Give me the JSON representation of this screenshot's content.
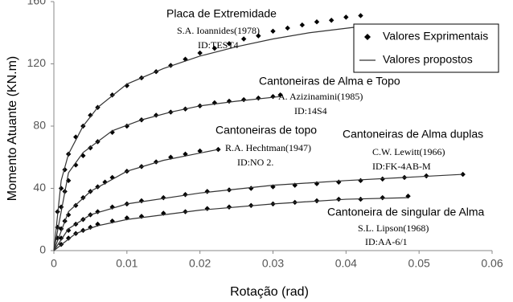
{
  "chart_data": {
    "type": "scatter",
    "x_label": "Rotação (rad)",
    "y_label": "Momento Atuante (KN.m)",
    "xlim": [
      0,
      0.06
    ],
    "xticks": [
      0,
      0.01,
      0.02,
      0.03,
      0.04,
      0.05,
      0.06
    ],
    "ylim": [
      0,
      160
    ],
    "yticks": [
      0,
      40,
      80,
      120,
      160
    ],
    "legend": "upper right",
    "series": [
      {
        "name": "Valores Exprimentais",
        "marker": "diamond",
        "color": "#000000",
        "curves": [
          {
            "x": [
              0.0005,
              0.001,
              0.0015,
              0.002,
              0.003,
              0.004,
              0.005,
              0.006,
              0.008,
              0.01,
              0.012,
              0.014,
              0.016,
              0.018,
              0.02,
              0.022,
              0.024,
              0.026,
              0.028,
              0.03,
              0.032,
              0.034,
              0.036,
              0.038,
              0.04,
              0.042
            ],
            "y": [
              25,
              40,
              52,
              62,
              73,
              80,
              87,
              92,
              100,
              106,
              111,
              115,
              119,
              123,
              127,
              130,
              133,
              136,
              138,
              141,
              143,
              145,
              147,
              148,
              150,
              151
            ]
          },
          {
            "x": [
              0.0005,
              0.001,
              0.0015,
              0.002,
              0.003,
              0.004,
              0.005,
              0.006,
              0.008,
              0.01,
              0.012,
              0.014,
              0.016,
              0.018,
              0.02,
              0.022,
              0.024,
              0.026,
              0.028,
              0.03,
              0.031
            ],
            "y": [
              15,
              28,
              38,
              45,
              55,
              61,
              66,
              70,
              76,
              80,
              84,
              87,
              89,
              91,
              93,
              95,
              96,
              97,
              98,
              99,
              100
            ]
          },
          {
            "x": [
              0.0005,
              0.001,
              0.0015,
              0.002,
              0.003,
              0.004,
              0.005,
              0.006,
              0.007,
              0.008,
              0.01,
              0.012,
              0.014,
              0.016,
              0.018,
              0.02,
              0.0225
            ],
            "y": [
              8,
              14,
              19,
              23,
              29,
              34,
              38,
              41,
              44,
              47,
              51,
              54,
              57,
              60,
              62,
              64,
              65
            ]
          },
          {
            "x": [
              0.001,
              0.002,
              0.003,
              0.004,
              0.005,
              0.006,
              0.008,
              0.01,
              0.012,
              0.015,
              0.018,
              0.021,
              0.024,
              0.027,
              0.03,
              0.033,
              0.036,
              0.039,
              0.042,
              0.045,
              0.048,
              0.051,
              0.056
            ],
            "y": [
              8,
              13,
              17,
              20,
              23,
              25,
              28,
              30,
              32,
              34,
              36,
              38,
              39,
              40,
              41,
              42,
              43,
              44,
              45,
              46,
              47,
              48,
              49
            ]
          },
          {
            "x": [
              0.001,
              0.002,
              0.003,
              0.004,
              0.005,
              0.006,
              0.008,
              0.01,
              0.012,
              0.015,
              0.018,
              0.021,
              0.024,
              0.027,
              0.03,
              0.033,
              0.036,
              0.039,
              0.042,
              0.045,
              0.0485
            ],
            "y": [
              4,
              8,
              11,
              13,
              15,
              17,
              19,
              21,
              22,
              24,
              25,
              27,
              28,
              29,
              30,
              31,
              32,
              33,
              33,
              34,
              35
            ]
          }
        ]
      },
      {
        "name": "Valores propostos",
        "marker": "line",
        "color": "#333333",
        "curves": [
          {
            "x": [
              0,
              0.001,
              0.002,
              0.004,
              0.006,
              0.01,
              0.015,
              0.02,
              0.025,
              0.03,
              0.035,
              0.042
            ],
            "y": [
              0,
              45,
              62,
              80,
              92,
              107,
              117,
              125,
              131,
              136,
              140,
              144
            ]
          },
          {
            "x": [
              0,
              0.002,
              0.004,
              0.008,
              0.012,
              0.016,
              0.02,
              0.025,
              0.031
            ],
            "y": [
              0,
              50,
              63,
              77,
              84,
              89,
              93,
              96,
              99
            ]
          },
          {
            "x": [
              0,
              0.002,
              0.005,
              0.01,
              0.015,
              0.0225
            ],
            "y": [
              0,
              25,
              38,
              51,
              58,
              65
            ]
          },
          {
            "x": [
              0,
              0.002,
              0.005,
              0.01,
              0.02,
              0.03,
              0.04,
              0.056
            ],
            "y": [
              0,
              14,
              23,
              30,
              37,
              42,
              45,
              49
            ]
          },
          {
            "x": [
              0,
              0.003,
              0.006,
              0.01,
              0.02,
              0.03,
              0.04,
              0.0485
            ],
            "y": [
              0,
              11,
              16,
              20,
              26,
              30,
              33,
              34
            ]
          }
        ]
      }
    ],
    "annotations": [
      [
        "Placa de Extremidade",
        "S.A. Ioannides(1978)",
        "ID:TEST4"
      ],
      [
        "Cantoneiras de Alma e Topo",
        "A. Azizinamini(1985)",
        "ID:14S4"
      ],
      [
        "Cantoneiras de topo",
        "R.A. Hechtman(1947)",
        "ID:NO 2."
      ],
      [
        "Cantoneiras de Alma duplas",
        "C.W. Lewitt(1966)",
        "ID:FK-4AB-M"
      ],
      [
        "Cantoneira de singular de Alma",
        "S.L. Lipson(1968)",
        "ID:AA-6/1"
      ]
    ]
  }
}
